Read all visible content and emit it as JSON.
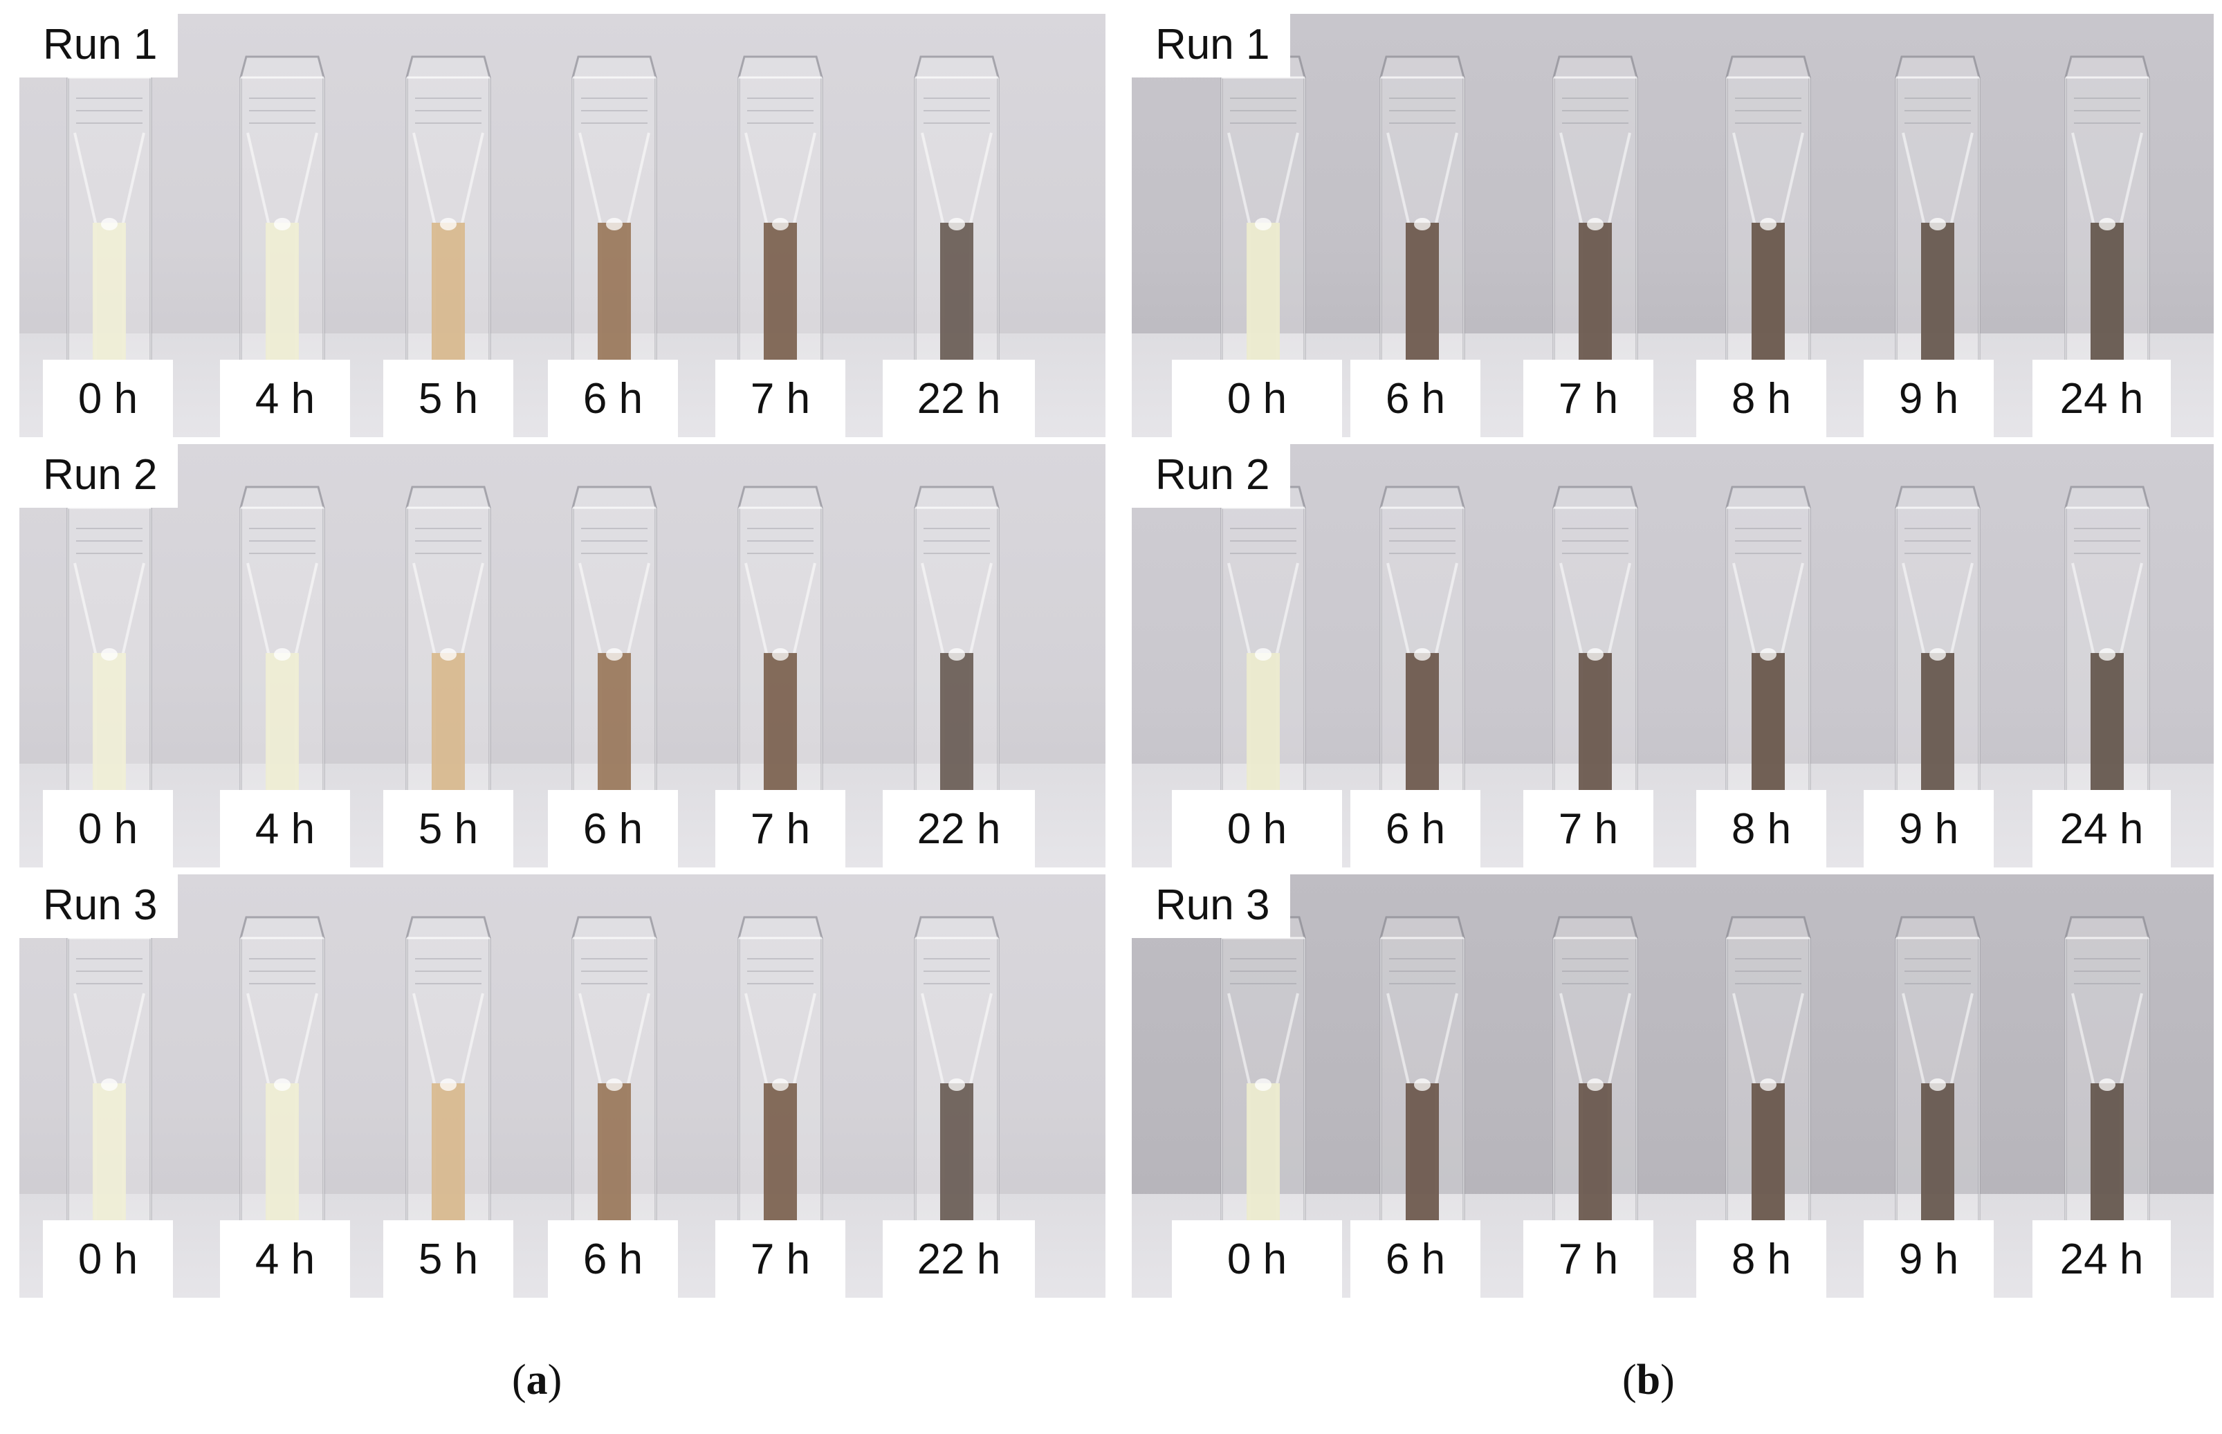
{
  "panels": [
    {
      "id": "a",
      "caption_open": "(",
      "caption_letter": "a",
      "caption_close": ")",
      "runs": [
        {
          "label": "Run 1",
          "times": [
            "0 h",
            "4 h",
            "5 h",
            "6 h",
            "7 h",
            "22 h"
          ]
        },
        {
          "label": "Run 2",
          "times": [
            "0 h",
            "4 h",
            "5 h",
            "6 h",
            "7 h",
            "22 h"
          ]
        },
        {
          "label": "Run 3",
          "times": [
            "0 h",
            "4 h",
            "5 h",
            "6 h",
            "7 h",
            "22 h"
          ]
        }
      ],
      "liquid_colors": [
        "#efeed6",
        "#eeedd4",
        "#d8b98f",
        "#9b7a5e",
        "#7d6452",
        "#6d6058"
      ]
    },
    {
      "id": "b",
      "caption_open": "(",
      "caption_letter": "b",
      "caption_close": ")",
      "runs": [
        {
          "label": "Run 1",
          "times": [
            "0 h",
            "6 h",
            "7 h",
            "8 h",
            "9 h",
            "24 h"
          ]
        },
        {
          "label": "Run 2",
          "times": [
            "0 h",
            "6 h",
            "7 h",
            "8 h",
            "9 h",
            "24 h"
          ]
        },
        {
          "label": "Run 3",
          "times": [
            "0 h",
            "6 h",
            "7 h",
            "8 h",
            "9 h",
            "24 h"
          ]
        }
      ],
      "liquid_colors": [
        "#ecebcf",
        "#6f5b4f",
        "#6c5a4f",
        "#6a584d",
        "#685a50",
        "#66584f"
      ]
    }
  ]
}
